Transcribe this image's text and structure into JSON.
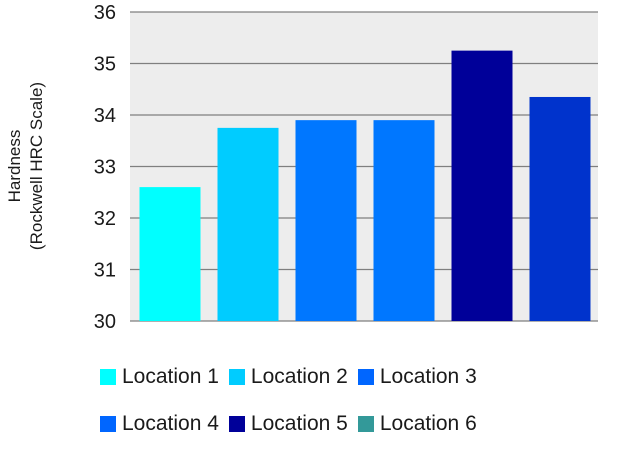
{
  "chart_data": {
    "type": "bar",
    "categories": [
      "Location 1",
      "Location 2",
      "Location 3",
      "Location 4",
      "Location 5",
      "Location 6"
    ],
    "values": [
      32.6,
      33.75,
      33.9,
      33.9,
      35.25,
      34.35
    ],
    "colors": [
      "#00FFFF",
      "#00CCFF",
      "#0077FF",
      "#0077FF",
      "#000099",
      "#0033CC"
    ],
    "legend_colors": [
      "#00FFFF",
      "#00CCFF",
      "#0066FF",
      "#0066FF",
      "#000099",
      "#339999"
    ],
    "ylabel_line1": "Hardness",
    "ylabel_line2": "(Rockwell HRC  Scale)",
    "ylim": [
      30,
      36
    ],
    "yticks": [
      "30",
      "31",
      "32",
      "33",
      "34",
      "35",
      "36"
    ],
    "grid": true,
    "legend_position": "bottom",
    "plot_background": "#EDEDED",
    "grid_color": "#7F7F7F"
  }
}
